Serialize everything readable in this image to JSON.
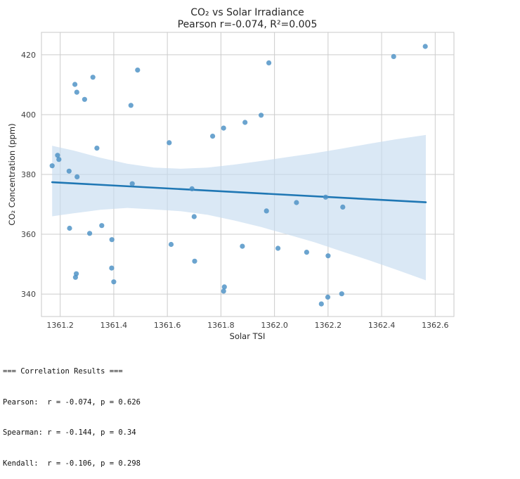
{
  "chart_data": {
    "type": "scatter",
    "title": "CO₂ vs Solar Irradiance",
    "subtitle": "Pearson r=-0.074, R²=0.005",
    "xlabel": "Solar TSI",
    "ylabel": "CO₂ Concentration (ppm)",
    "xlim": [
      1361.13,
      1362.67
    ],
    "ylim": [
      332.5,
      427.5
    ],
    "xticks": [
      1361.2,
      1361.4,
      1361.6,
      1361.8,
      1362.0,
      1362.2,
      1362.4,
      1362.6
    ],
    "xtick_labels": [
      "1361.2",
      "1361.4",
      "1361.6",
      "1361.8",
      "1362.0",
      "1362.2",
      "1362.4",
      "1362.6"
    ],
    "yticks": [
      340,
      360,
      380,
      400,
      420
    ],
    "ytick_labels": [
      "340",
      "360",
      "380",
      "400",
      "420"
    ],
    "grid": true,
    "colors": {
      "points": "#4a90c4",
      "line": "#1f77b4",
      "band": "#c6dbef"
    },
    "points": [
      {
        "x": 1361.17,
        "y": 382.9
      },
      {
        "x": 1361.19,
        "y": 386.4
      },
      {
        "x": 1361.195,
        "y": 385.0
      },
      {
        "x": 1361.233,
        "y": 381.1
      },
      {
        "x": 1361.235,
        "y": 362.0
      },
      {
        "x": 1361.255,
        "y": 410.1
      },
      {
        "x": 1361.262,
        "y": 407.5
      },
      {
        "x": 1361.263,
        "y": 379.2
      },
      {
        "x": 1361.26,
        "y": 346.8
      },
      {
        "x": 1361.257,
        "y": 345.6
      },
      {
        "x": 1361.291,
        "y": 405.1
      },
      {
        "x": 1361.31,
        "y": 360.3
      },
      {
        "x": 1361.322,
        "y": 412.5
      },
      {
        "x": 1361.337,
        "y": 388.8
      },
      {
        "x": 1361.355,
        "y": 362.9
      },
      {
        "x": 1361.393,
        "y": 358.2
      },
      {
        "x": 1361.392,
        "y": 348.7
      },
      {
        "x": 1361.4,
        "y": 344.1
      },
      {
        "x": 1361.464,
        "y": 403.1
      },
      {
        "x": 1361.469,
        "y": 376.9
      },
      {
        "x": 1361.489,
        "y": 414.9
      },
      {
        "x": 1361.607,
        "y": 390.6
      },
      {
        "x": 1361.614,
        "y": 356.6
      },
      {
        "x": 1361.692,
        "y": 375.2
      },
      {
        "x": 1361.7,
        "y": 365.9
      },
      {
        "x": 1361.702,
        "y": 351.0
      },
      {
        "x": 1361.769,
        "y": 392.8
      },
      {
        "x": 1361.81,
        "y": 395.5
      },
      {
        "x": 1361.813,
        "y": 342.4
      },
      {
        "x": 1361.81,
        "y": 341.0
      },
      {
        "x": 1361.88,
        "y": 356.0
      },
      {
        "x": 1361.89,
        "y": 397.4
      },
      {
        "x": 1361.95,
        "y": 399.8
      },
      {
        "x": 1361.97,
        "y": 367.8
      },
      {
        "x": 1361.979,
        "y": 417.3
      },
      {
        "x": 1362.013,
        "y": 355.3
      },
      {
        "x": 1362.082,
        "y": 370.6
      },
      {
        "x": 1362.12,
        "y": 354.0
      },
      {
        "x": 1362.175,
        "y": 336.7
      },
      {
        "x": 1362.191,
        "y": 372.4
      },
      {
        "x": 1362.2,
        "y": 352.8
      },
      {
        "x": 1362.199,
        "y": 339.0
      },
      {
        "x": 1362.251,
        "y": 340.1
      },
      {
        "x": 1362.255,
        "y": 369.1
      },
      {
        "x": 1362.445,
        "y": 419.4
      },
      {
        "x": 1362.563,
        "y": 422.8
      }
    ],
    "regression": {
      "x": [
        1361.17,
        1362.565
      ],
      "y": [
        377.4,
        370.7
      ]
    },
    "confidence_band": {
      "x": [
        1361.17,
        1361.25,
        1361.35,
        1361.45,
        1361.55,
        1361.65,
        1361.75,
        1361.85,
        1361.95,
        1362.05,
        1362.15,
        1362.25,
        1362.35,
        1362.45,
        1362.565
      ],
      "upper": [
        389.6,
        388.0,
        385.6,
        383.6,
        382.3,
        381.9,
        382.3,
        383.3,
        384.5,
        385.8,
        387.1,
        388.6,
        390.2,
        391.7,
        393.2
      ],
      "lower": [
        366.0,
        367.0,
        368.2,
        368.8,
        368.3,
        367.7,
        366.5,
        364.6,
        362.4,
        359.9,
        357.3,
        354.3,
        351.4,
        348.3,
        344.6
      ]
    }
  },
  "console": {
    "lines": [
      "=== Correlation Results ===",
      "Pearson:  r = -0.074, p = 0.626",
      "Spearman: r = -0.144, p = 0.34",
      "Kendall:  r = -0.106, p = 0.298"
    ]
  }
}
